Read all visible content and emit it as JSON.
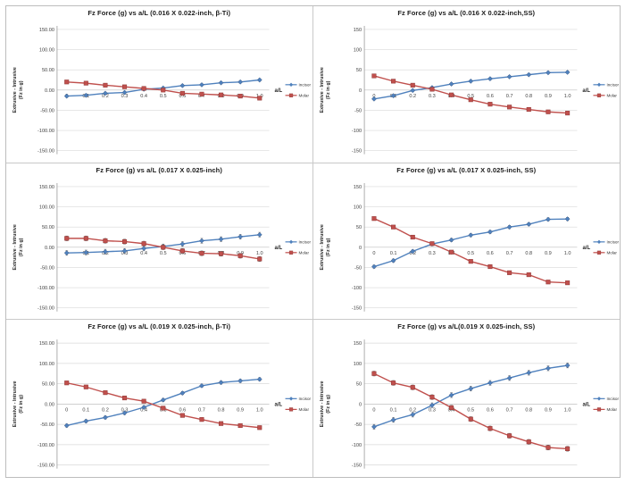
{
  "figure": {
    "description": "Grid of six Fz force line charts comparing Incisor and Molar forces vs a/L for different archwires"
  },
  "colors": {
    "incisor": "#4F81BD",
    "molar": "#C0504D",
    "molar_marker_stroke": "#8E3836",
    "gridline": "#D9D9D9",
    "zero_axis": "#BFBFBF",
    "y_axis": "#9A9A9A",
    "error_bar": "#636363",
    "tick_text": "#3F3F3F",
    "title_text": "#1A1A1A",
    "cell_border": "#C9C9C9"
  },
  "chart_data": [
    {
      "type": "line",
      "title": "Fz Force (g) vs a/L  (0.016 X 0.022-inch, β-Ti)",
      "xlabel": "a/L",
      "ylabel_line1": "Extrusive   -   Intrusive",
      "ylabel_line2": "(Fz in g)",
      "ylim": [
        -150,
        150
      ],
      "ytick_step": 50,
      "grid": true,
      "legend_position": "right",
      "ytick_labels": [
        "150.00",
        "100.00",
        "50.00",
        "0.00",
        "-50.00",
        "-100.00",
        "-150.00"
      ],
      "xtick_labels": [
        "0",
        "0.1",
        "0.2",
        "0.3",
        "0.4",
        "0.5",
        "0.6",
        "0.7",
        "0.8",
        "0.9",
        "1.0"
      ],
      "x": [
        0,
        0.1,
        0.2,
        0.3,
        0.4,
        0.5,
        0.6,
        0.7,
        0.8,
        0.9,
        1.0
      ],
      "error_bar": 3,
      "series": [
        {
          "name": "Incisor",
          "marker": "diamond",
          "values": [
            -15,
            -13,
            -8,
            -6,
            2,
            5,
            11,
            13,
            18,
            20,
            25
          ]
        },
        {
          "name": "Molar",
          "marker": "square",
          "values": [
            20,
            17,
            12,
            8,
            4,
            0,
            -8,
            -10,
            -12,
            -15,
            -20
          ]
        }
      ]
    },
    {
      "type": "line",
      "title": "Fz Force (g) vs a/L (0.016 X 0.022-inch,SS)",
      "xlabel": "a/L",
      "ylabel_line1": "Extrusive   -   Intrusive",
      "ylabel_line2": "(Fz in g)",
      "ylim": [
        -150,
        150
      ],
      "ytick_step": 50,
      "grid": true,
      "legend_position": "right",
      "ytick_labels": [
        "150",
        "100",
        "50",
        "0",
        "-50",
        "-100",
        "-150"
      ],
      "xtick_labels": [
        "0",
        "0.1",
        "0.2",
        "0.3",
        "0.4",
        "0.5",
        "0.6",
        "0.7",
        "0.8",
        "0.9",
        "1.0"
      ],
      "x": [
        0,
        0.1,
        0.2,
        0.3,
        0.4,
        0.5,
        0.6,
        0.7,
        0.8,
        0.9,
        1.0
      ],
      "error_bar": 3,
      "series": [
        {
          "name": "Incisor",
          "marker": "diamond",
          "values": [
            -22,
            -14,
            -1,
            6,
            15,
            22,
            28,
            33,
            38,
            43,
            44
          ]
        },
        {
          "name": "Molar",
          "marker": "square",
          "values": [
            35,
            22,
            12,
            2,
            -12,
            -24,
            -35,
            -42,
            -48,
            -54,
            -57
          ]
        }
      ]
    },
    {
      "type": "line",
      "title": "Fz Force (g) vs a/L (0.017 X 0.025-inch)",
      "xlabel": "a/L",
      "ylabel_line1": "Extrusive   -   Intrusive",
      "ylabel_line2": "(Fz in g)",
      "ylim": [
        -150,
        150
      ],
      "ytick_step": 50,
      "grid": true,
      "legend_position": "right",
      "ytick_labels": [
        "150.00",
        "100.00",
        "50.00",
        "0.00",
        "-50.00",
        "-100.00",
        "-150.00"
      ],
      "xtick_labels": [
        "0",
        "0.1",
        "0.2",
        "0.3",
        "0.4",
        "0.5",
        "0.6",
        "0.7",
        "0.8",
        "0.9",
        "1.0"
      ],
      "x": [
        0,
        0.1,
        0.2,
        0.3,
        0.4,
        0.5,
        0.6,
        0.7,
        0.8,
        0.9,
        1.0
      ],
      "error_bar": 6,
      "series": [
        {
          "name": "Incisor",
          "marker": "diamond",
          "values": [
            -14,
            -13,
            -11,
            -9,
            -3,
            2,
            8,
            16,
            20,
            26,
            31
          ]
        },
        {
          "name": "Molar",
          "marker": "square",
          "values": [
            22,
            22,
            16,
            14,
            9,
            0,
            -9,
            -15,
            -16,
            -21,
            -29
          ]
        }
      ]
    },
    {
      "type": "line",
      "title": "Fz Force (g) vs a/L (0.017 X 0.025-inch, SS)",
      "xlabel": "a/L",
      "ylabel_line1": "Extrusive   -   Intrusive",
      "ylabel_line2": "(Fz in g)",
      "ylim": [
        -150,
        150
      ],
      "ytick_step": 50,
      "grid": true,
      "legend_position": "right",
      "ytick_labels": [
        "150",
        "100",
        "50",
        "0",
        "-50",
        "-100",
        "-150"
      ],
      "xtick_labels": [
        "0",
        "0.1",
        "0.2",
        "0.3",
        "0.4",
        "0.5",
        "0.6",
        "0.7",
        "0.8",
        "0.9",
        "1.0"
      ],
      "x": [
        0,
        0.1,
        0.2,
        0.3,
        0.4,
        0.5,
        0.6,
        0.7,
        0.8,
        0.9,
        1.0
      ],
      "error_bar": 4,
      "series": [
        {
          "name": "Incisor",
          "marker": "diamond",
          "values": [
            -48,
            -33,
            -10,
            8,
            18,
            30,
            38,
            50,
            57,
            69,
            70
          ]
        },
        {
          "name": "Molar",
          "marker": "square",
          "values": [
            71,
            50,
            25,
            9,
            -12,
            -35,
            -48,
            -63,
            -68,
            -86,
            -88
          ]
        }
      ]
    },
    {
      "type": "line",
      "title": "Fz Force (g) vs a/L (0.019 X 0.025-inch, β-Ti)",
      "xlabel": "a/L",
      "ylabel_line1": "Extrusive   -   Intrusive",
      "ylabel_line2": "(Fz in g)",
      "ylim": [
        -150,
        150
      ],
      "ytick_step": 50,
      "grid": true,
      "legend_position": "right",
      "ytick_labels": [
        "150.00",
        "100.00",
        "50.00",
        "0.00",
        "-50.00",
        "-100.00",
        "-150.00"
      ],
      "xtick_labels": [
        "0",
        "0.1",
        "0.2",
        "0.3",
        "0.4",
        "0.5",
        "0.6",
        "0.7",
        "0.8",
        "0.9",
        "1.0"
      ],
      "x": [
        0,
        0.1,
        0.2,
        0.3,
        0.4,
        0.5,
        0.6,
        0.7,
        0.8,
        0.9,
        1.0
      ],
      "error_bar": 4,
      "series": [
        {
          "name": "Incisor",
          "marker": "diamond",
          "values": [
            -53,
            -42,
            -33,
            -22,
            -8,
            10,
            27,
            45,
            53,
            57,
            61
          ]
        },
        {
          "name": "Molar",
          "marker": "square",
          "values": [
            52,
            42,
            28,
            15,
            7,
            -10,
            -28,
            -38,
            -48,
            -53,
            -58
          ]
        }
      ]
    },
    {
      "type": "line",
      "title": "Fz Force (g) vs a/L(0.019 X 0.025-inch, SS)",
      "xlabel": "a/L",
      "ylabel_line1": "Extrusive   -   Intrusive",
      "ylabel_line2": "(Fz in g)",
      "ylim": [
        -150,
        150
      ],
      "ytick_step": 50,
      "grid": true,
      "legend_position": "right",
      "ytick_labels": [
        "150",
        "100",
        "50",
        "0",
        "-50",
        "-100",
        "-150"
      ],
      "xtick_labels": [
        "0",
        "0.1",
        "0.2",
        "0.3",
        "0.4",
        "0.5",
        "0.6",
        "0.7",
        "0.8",
        "0.9",
        "1.0"
      ],
      "x": [
        0,
        0.1,
        0.2,
        0.3,
        0.4,
        0.5,
        0.6,
        0.7,
        0.8,
        0.9,
        1.0
      ],
      "error_bar": 6,
      "series": [
        {
          "name": "Incisor",
          "marker": "diamond",
          "values": [
            -56,
            -39,
            -26,
            -3,
            22,
            38,
            52,
            64,
            77,
            88,
            95
          ]
        },
        {
          "name": "Molar",
          "marker": "square",
          "values": [
            75,
            52,
            41,
            17,
            -9,
            -37,
            -60,
            -78,
            -93,
            -107,
            -110
          ]
        }
      ]
    }
  ]
}
